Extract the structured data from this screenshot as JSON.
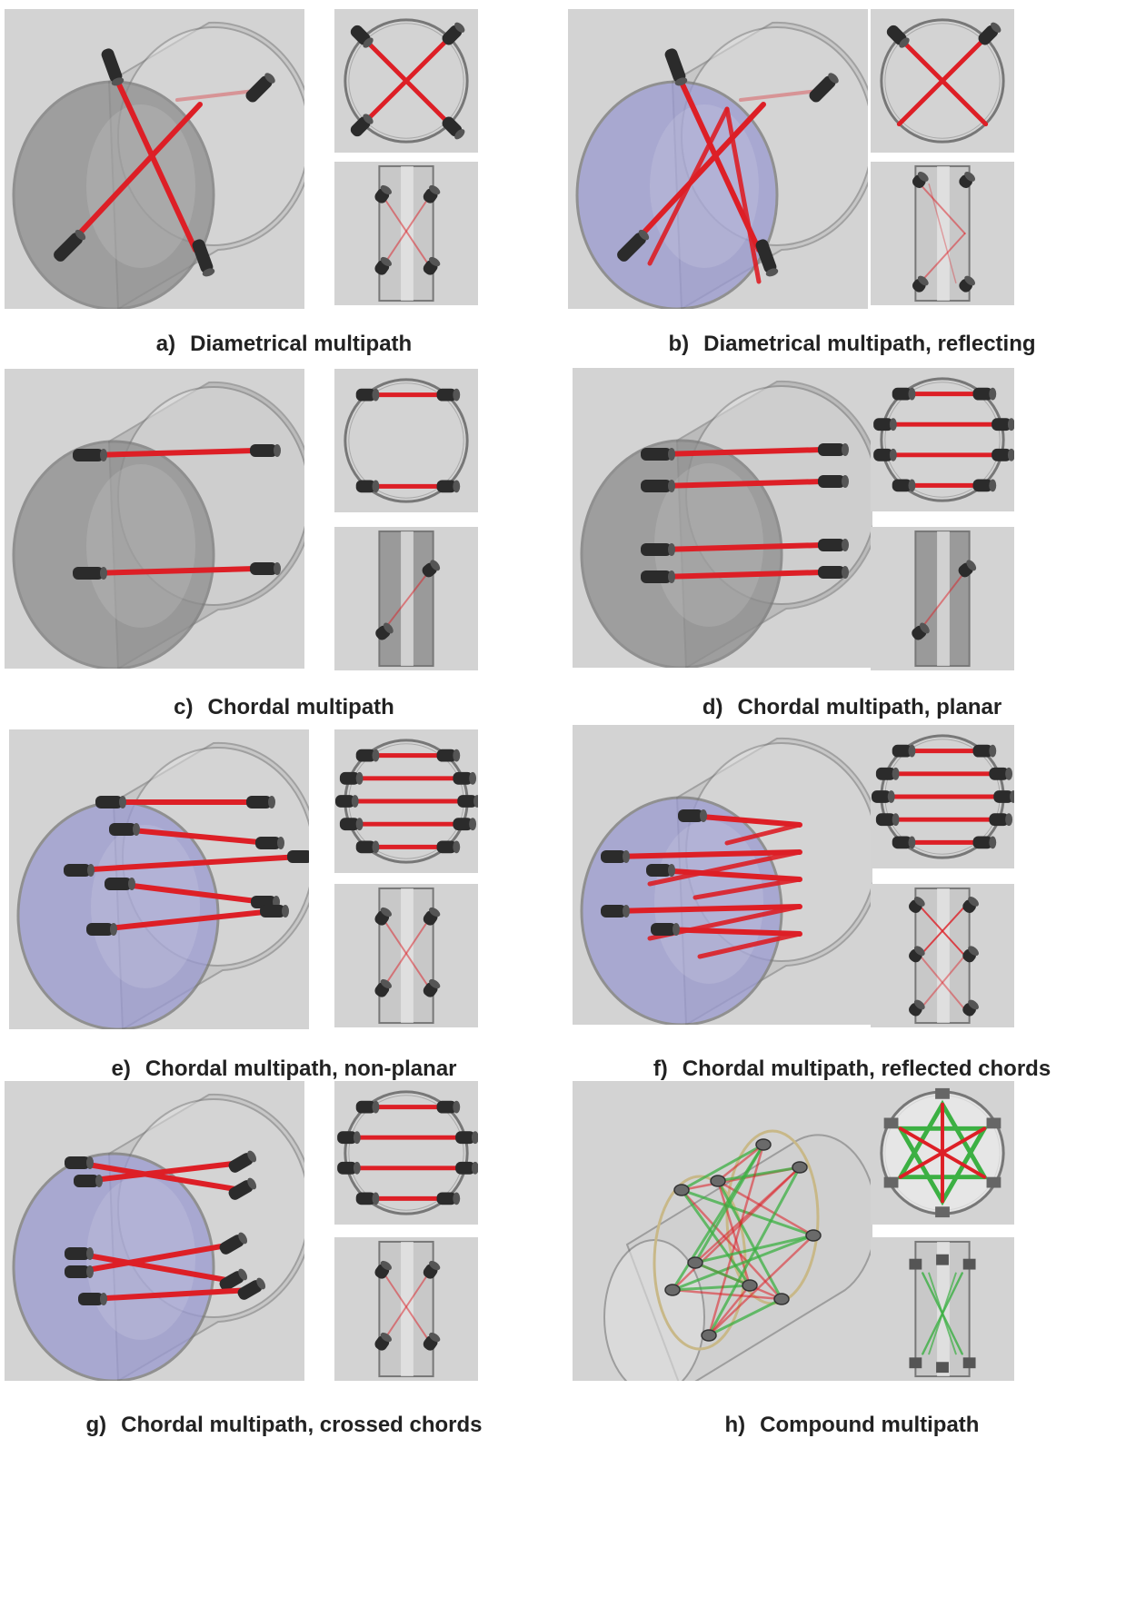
{
  "figures": [
    {
      "letter": "a)",
      "caption": "Diametrical multipath",
      "type": "diametrical",
      "reflecting": false,
      "inner_color": "#8d8d8d",
      "side_color": "#bfbfbf"
    },
    {
      "letter": "b)",
      "caption": "Diametrical multipath, reflecting",
      "type": "diametrical",
      "reflecting": true,
      "inner_color": "#9a9ad0",
      "side_color": "#bfbfbf"
    },
    {
      "letter": "c)",
      "caption": "Chordal multipath",
      "type": "chordal",
      "paths": 2,
      "inner_color": "#8d8d8d",
      "side_color": "#a9a9a9"
    },
    {
      "letter": "d)",
      "caption": "Chordal multipath, planar",
      "type": "chordal",
      "paths": 4,
      "inner_color": "#8d8d8d",
      "side_color": "#a9a9a9"
    },
    {
      "letter": "e)",
      "caption": "Chordal multipath, non-planar",
      "type": "nonplanar",
      "paths": 5,
      "inner_color": "#9a9ad0",
      "side_color": "#bfbfbf"
    },
    {
      "letter": "f)",
      "caption": "Chordal multipath, reflected chords",
      "type": "reflected",
      "paths": 5,
      "inner_color": "#9a9ad0",
      "side_color": "#bfbfbf"
    },
    {
      "letter": "g)",
      "caption": "Chordal multipath, crossed chords",
      "type": "crossed",
      "paths": 4,
      "inner_color": "#9a9ad0",
      "side_color": "#bfbfbf"
    },
    {
      "letter": "h)",
      "caption": "Compound multipath",
      "type": "compound",
      "inner_color": "#c8c8c8",
      "side_color": "#bfbfbf"
    }
  ],
  "colors": {
    "path_red": "#dd1f26",
    "path_green": "#3cb043",
    "transducer": "#2b2b2b",
    "pipe_stroke": "#7a7a7a",
    "panel_bg": "#d3d3d3"
  }
}
